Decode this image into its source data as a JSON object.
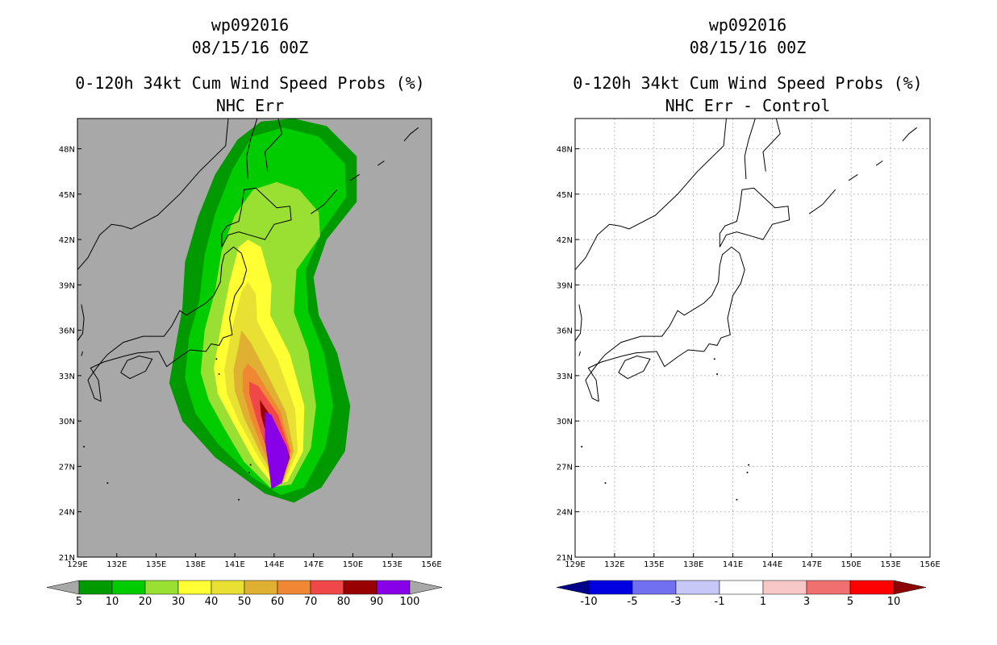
{
  "chart_data": [
    {
      "type": "heatmap",
      "title_lines": [
        "wp092016",
        "08/15/16 00Z",
        "0-120h 34kt Cum Wind Speed Probs (%)",
        "NHC Err"
      ],
      "x_ticks": [
        "129E",
        "132E",
        "135E",
        "138E",
        "141E",
        "144E",
        "147E",
        "150E",
        "153E",
        "156E"
      ],
      "y_ticks": [
        "21N",
        "24N",
        "27N",
        "30N",
        "33N",
        "36N",
        "39N",
        "42N",
        "45N",
        "48N"
      ],
      "xlim": [
        129,
        156
      ],
      "ylim": [
        21,
        50
      ],
      "contour_levels": [
        5,
        10,
        20,
        30,
        40,
        50,
        60,
        70,
        80,
        90,
        100
      ],
      "contour_band_values": [
        5,
        10,
        20,
        30,
        40,
        50,
        60,
        70,
        80,
        90
      ],
      "colorbar": {
        "labels": [
          "5",
          "10",
          "20",
          "30",
          "40",
          "50",
          "60",
          "70",
          "80",
          "90",
          "100"
        ],
        "colors": [
          "#009900",
          "#00cc00",
          "#99e033",
          "#ffff33",
          "#e8e033",
          "#e0b033",
          "#f08833",
          "#f04848",
          "#990000",
          "#8800e8"
        ],
        "low_arrow_color": "#a8a8a8",
        "high_arrow_color": "#a8a8a8"
      },
      "background_color": "#a8a8a8",
      "gridlines": false
    },
    {
      "type": "heatmap",
      "title_lines": [
        "wp092016",
        "08/15/16 00Z",
        "0-120h 34kt Cum Wind Speed Probs (%)",
        "NHC Err - Control"
      ],
      "x_ticks": [
        "129E",
        "132E",
        "135E",
        "138E",
        "141E",
        "144E",
        "147E",
        "150E",
        "153E",
        "156E"
      ],
      "y_ticks": [
        "21N",
        "24N",
        "27N",
        "30N",
        "33N",
        "36N",
        "39N",
        "42N",
        "45N",
        "48N"
      ],
      "xlim": [
        129,
        156
      ],
      "ylim": [
        21,
        50
      ],
      "colorbar": {
        "labels": [
          "-10",
          "-5",
          "-3",
          "-1",
          "1",
          "3",
          "5",
          "10"
        ],
        "colors": [
          "#0000e0",
          "#7070f0",
          "#c8c8f8",
          "#ffffff",
          "#f8c8c8",
          "#f07070",
          "#ff0000"
        ],
        "low_arrow_color": "#00008b",
        "high_arrow_color": "#8b0000"
      },
      "background_color": "#ffffff",
      "gridlines": true
    }
  ]
}
